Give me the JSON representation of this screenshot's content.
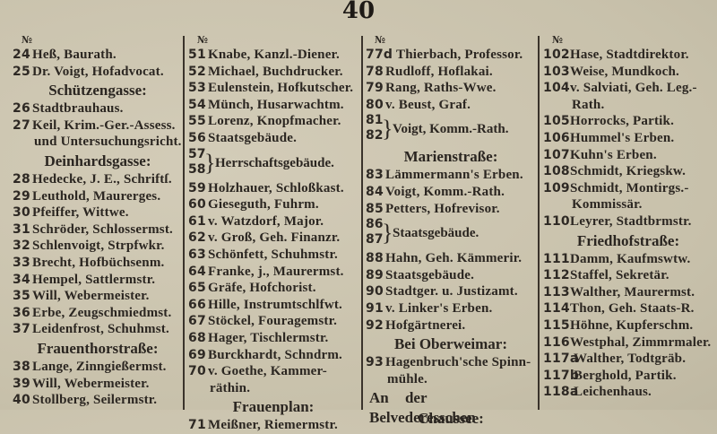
{
  "page_number": "40",
  "columns": [
    {
      "items": [
        {
          "type": "no",
          "text": "№"
        },
        {
          "type": "entry",
          "num": "24",
          "text": "Heß, Baurath."
        },
        {
          "type": "entry",
          "num": "25",
          "text": "Dr. Voigt, Hofadvocat."
        },
        {
          "type": "head",
          "text": "Schützengasse:"
        },
        {
          "type": "entry",
          "num": "26",
          "text": "Stadtbrauhaus."
        },
        {
          "type": "entry",
          "num": "27",
          "text": "Keil, Krim.-Ger.-Assess."
        },
        {
          "type": "cont",
          "text": "und Untersuchungsricht."
        },
        {
          "type": "head",
          "text": "Deinhardsgasse:"
        },
        {
          "type": "entry",
          "num": "28",
          "text": "Hedecke, J. E., Schriftſ."
        },
        {
          "type": "entry",
          "num": "29",
          "text": "Leuthold, Maurerges."
        },
        {
          "type": "entry",
          "num": "30",
          "text": "Pfeiffer, Wittwe."
        },
        {
          "type": "entry",
          "num": "31",
          "text": "Schröder, Schlossermst."
        },
        {
          "type": "entry",
          "num": "32",
          "text": "Schlenvoigt, Strpfwkr."
        },
        {
          "type": "entry",
          "num": "33",
          "text": "Brecht, Hofbüchsenm."
        },
        {
          "type": "entry",
          "num": "34",
          "text": "Hempel, Sattlermstr."
        },
        {
          "type": "entry",
          "num": "35",
          "text": "Will, Webermeister."
        },
        {
          "type": "entry",
          "num": "36",
          "text": "Erbe, Zeugschmiedmst."
        },
        {
          "type": "entry",
          "num": "37",
          "text": "Leidenfrost, Schuhmst."
        },
        {
          "type": "head",
          "text": "Frauenthorstraße:"
        },
        {
          "type": "entry",
          "num": "38",
          "text": "Lange, Zinngießermst."
        },
        {
          "type": "entry",
          "num": "39",
          "text": "Will, Webermeister."
        },
        {
          "type": "entry",
          "num": "40",
          "text": "Stollberg, Seilermstr."
        }
      ]
    },
    {
      "items": [
        {
          "type": "no",
          "text": "№"
        },
        {
          "type": "entry",
          "num": "51",
          "text": "Knabe, Kanzl.-Diener."
        },
        {
          "type": "entry",
          "num": "52",
          "text": "Michael, Buchdrucker."
        },
        {
          "type": "entry",
          "num": "53",
          "text": "Eulenstein, Hofkutscher."
        },
        {
          "type": "entry",
          "num": "54",
          "text": "Münch, Husarwachtm."
        },
        {
          "type": "entry",
          "num": "55",
          "text": "Lorenz, Knopfmacher."
        },
        {
          "type": "entry",
          "num": "56",
          "text": "Staatsgebäude."
        },
        {
          "type": "bracket",
          "num": "57",
          "num2": "58",
          "text": "Herrschaftsgebäude."
        },
        {
          "type": "entry",
          "num": "59",
          "text": "Holzhauer, Schloßkast."
        },
        {
          "type": "entry",
          "num": "60",
          "text": "Gieseguth, Fuhrm."
        },
        {
          "type": "entry",
          "num": "61",
          "text": "v. Watzdorf, Major."
        },
        {
          "type": "entry",
          "num": "62",
          "text": "v. Groß, Geh. Finanzr."
        },
        {
          "type": "entry",
          "num": "63",
          "text": "Schönfett, Schuhmstr."
        },
        {
          "type": "entry",
          "num": "64",
          "text": "Franke, j., Maurermst."
        },
        {
          "type": "entry",
          "num": "65",
          "text": "Gräfe, Hofchorist."
        },
        {
          "type": "entry",
          "num": "66",
          "text": "Hille, Instrumtschlfwt."
        },
        {
          "type": "entry",
          "num": "67",
          "text": "Stöckel, Fouragemstr."
        },
        {
          "type": "entry",
          "num": "68",
          "text": "Hager, Tischlermstr."
        },
        {
          "type": "entry",
          "num": "69",
          "text": "Burckhardt, Schndrm."
        },
        {
          "type": "entry",
          "num": "70",
          "text": "v. Goethe, Kammer-"
        },
        {
          "type": "cont",
          "text": "räthin."
        },
        {
          "type": "head",
          "text": "Frauenplan:"
        },
        {
          "type": "entry",
          "num": "71",
          "text": "Meißner, Riemermstr."
        }
      ]
    },
    {
      "items": [
        {
          "type": "no",
          "text": "№"
        },
        {
          "type": "entry",
          "num": "77d",
          "text": "Thierbach, Professor."
        },
        {
          "type": "entry",
          "num": "78",
          "text": "Rudloff, Hoflakai."
        },
        {
          "type": "entry",
          "num": "79",
          "text": "Rang, Raths-Wwe."
        },
        {
          "type": "entry",
          "num": "80",
          "text": "v. Beust, Graf."
        },
        {
          "type": "bracket",
          "num": "81",
          "num2": "82",
          "text": "Voigt, Komm.-Rath."
        },
        {
          "type": "head",
          "text": "Marienstraße:"
        },
        {
          "type": "entry",
          "num": "83",
          "text": "Lämmermann's Erben."
        },
        {
          "type": "entry",
          "num": "84",
          "text": "Voigt, Komm.-Rath."
        },
        {
          "type": "entry",
          "num": "85",
          "text": "Petters, Hofrevisor."
        },
        {
          "type": "bracket",
          "num": "86",
          "num2": "87",
          "text": "Staatsgebäude."
        },
        {
          "type": "entry",
          "num": "88",
          "text": "Hahn, Geh. Kämmerir."
        },
        {
          "type": "entry",
          "num": "89",
          "text": "Staatsgebäude."
        },
        {
          "type": "entry",
          "num": "90",
          "text": "Stadtger. u. Justizamt."
        },
        {
          "type": "entry",
          "num": "91",
          "text": "v. Linker's Erben."
        },
        {
          "type": "entry",
          "num": "92",
          "text": "Hofgärtnerei."
        },
        {
          "type": "head",
          "text": "Bei Oberweimar:"
        },
        {
          "type": "entry",
          "num": "93",
          "text": "Hagenbruch'sche Spinn-"
        },
        {
          "type": "cont",
          "text": "mühle."
        },
        {
          "type": "headl",
          "text": "An der Belvederesschen"
        },
        {
          "type": "head",
          "text": "Chaussee:"
        }
      ]
    },
    {
      "items": [
        {
          "type": "no",
          "text": "№"
        },
        {
          "type": "entry",
          "num": "102",
          "text": "Hase, Stadtdirektor."
        },
        {
          "type": "entry",
          "num": "103",
          "text": "Weise, Mundkoch."
        },
        {
          "type": "entry",
          "num": "104",
          "text": "v. Salviati, Geh. Leg.-"
        },
        {
          "type": "cont",
          "text": "Rath."
        },
        {
          "type": "entry",
          "num": "105",
          "text": "Horrocks, Partik."
        },
        {
          "type": "entry",
          "num": "106",
          "text": "Hummel's Erben."
        },
        {
          "type": "entry",
          "num": "107",
          "text": "Kuhn's Erben."
        },
        {
          "type": "entry",
          "num": "108",
          "text": "Schmidt, Kriegskw."
        },
        {
          "type": "entry",
          "num": "109",
          "text": "Schmidt, Montirgs.-"
        },
        {
          "type": "cont",
          "text": "Kommissär."
        },
        {
          "type": "entry",
          "num": "110",
          "text": "Leyrer, Stadtbrmstr."
        },
        {
          "type": "head",
          "text": "Friedhofstraße:"
        },
        {
          "type": "entry",
          "num": "111",
          "text": "Damm, Kaufmswtw."
        },
        {
          "type": "entry",
          "num": "112",
          "text": "Staffel, Sekretär."
        },
        {
          "type": "entry",
          "num": "113",
          "text": "Walther, Maurermst."
        },
        {
          "type": "entry",
          "num": "114",
          "text": "Thon, Geh. Staats-R."
        },
        {
          "type": "entry",
          "num": "115",
          "text": "Höhne, Kupferschm."
        },
        {
          "type": "entry",
          "num": "116",
          "text": "Westphal, Zimmrmaler."
        },
        {
          "type": "entry",
          "num": "117a",
          "text": "Walther, Todtgräb."
        },
        {
          "type": "entry",
          "num": "117b",
          "text": "Berghold, Partik."
        },
        {
          "type": "entry",
          "num": "118a",
          "text": "Leichenhaus."
        }
      ]
    }
  ]
}
